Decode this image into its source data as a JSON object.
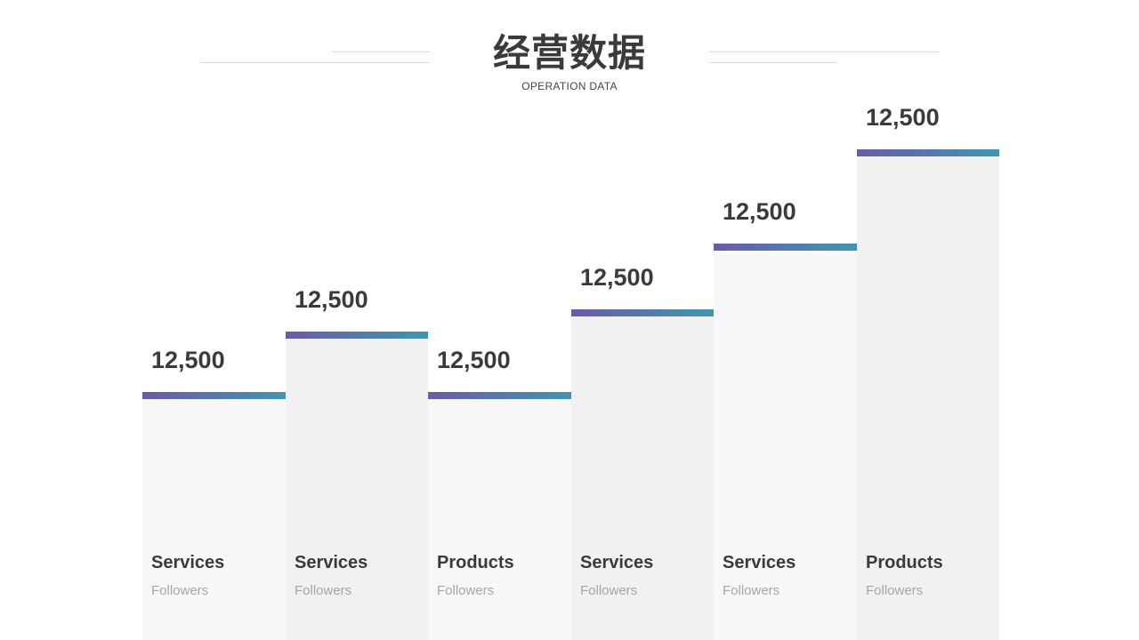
{
  "header": {
    "title": "经营数据",
    "subtitle": "OPERATION DATA"
  },
  "colors": {
    "bar_light": "#f8f8f8",
    "bar_dark": "#f1f1f1",
    "accent_start": "#6b5ba5",
    "accent_end": "#3f96b0",
    "text_dark": "#3a3a3a",
    "text_muted": "#a6a6a6"
  },
  "chart_data": {
    "type": "bar",
    "bars": [
      {
        "value_label": "12,500",
        "category": "Services",
        "sublabel": "Followers",
        "level": 0.45
      },
      {
        "value_label": "12,500",
        "category": "Services",
        "sublabel": "Followers",
        "level": 0.56
      },
      {
        "value_label": "12,500",
        "category": "Products",
        "sublabel": "Followers",
        "level": 0.45
      },
      {
        "value_label": "12,500",
        "category": "Services",
        "sublabel": "Followers",
        "level": 0.6
      },
      {
        "value_label": "12,500",
        "category": "Services",
        "sublabel": "Followers",
        "level": 0.72
      },
      {
        "value_label": "12,500",
        "category": "Products",
        "sublabel": "Followers",
        "level": 0.89
      }
    ]
  }
}
